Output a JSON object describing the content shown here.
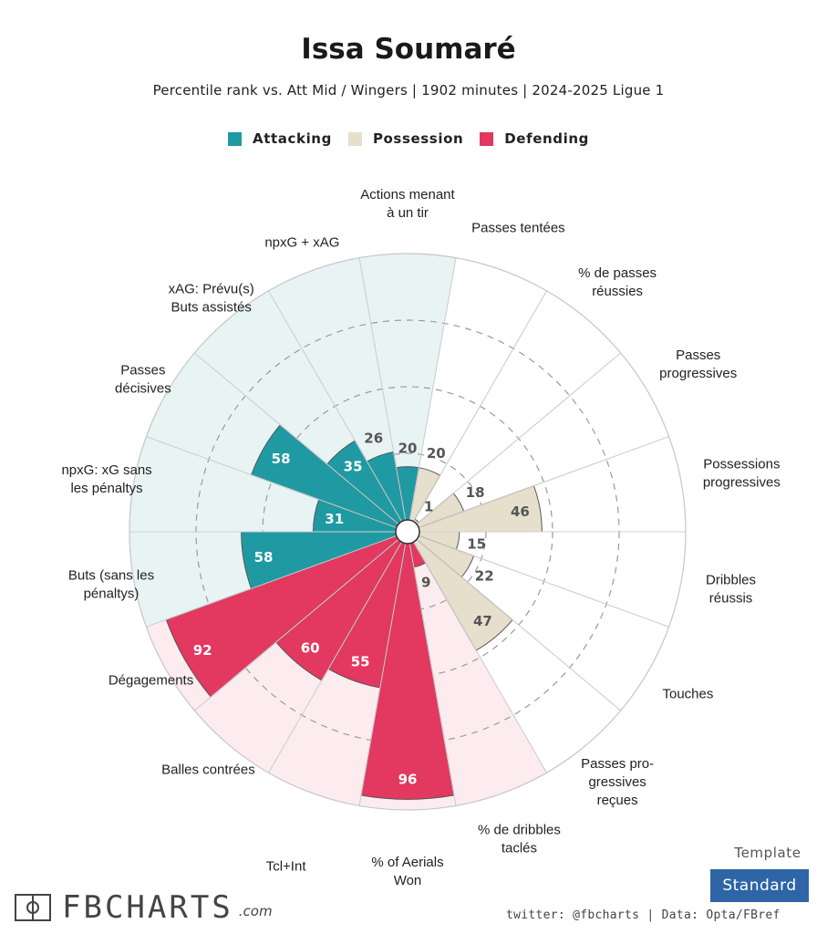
{
  "header": {
    "title": "Issa Soumaré",
    "subtitle": "Percentile rank vs. Att Mid / Wingers | 1902 minutes | 2024-2025 Ligue 1"
  },
  "legend": [
    {
      "label": "Attacking",
      "color": "#1f9aa3"
    },
    {
      "label": "Possession",
      "color": "#e6dfcc"
    },
    {
      "label": "Defending",
      "color": "#e3385f"
    }
  ],
  "chart_data": {
    "type": "polar-bar",
    "rlim": [
      0,
      100
    ],
    "grid": true,
    "categories": [
      {
        "label": "Actions menant\nà un tir",
        "value": 20,
        "group": "Attacking"
      },
      {
        "label": "Passes tentées",
        "value": 20,
        "group": "Possession"
      },
      {
        "label": "% de passes\nréussies",
        "value": 1,
        "group": "Possession"
      },
      {
        "label": "Passes\nprogressives",
        "value": 18,
        "group": "Possession"
      },
      {
        "label": "Possessions\nprogressives",
        "value": 46,
        "group": "Possession"
      },
      {
        "label": "Dribbles\nréussis",
        "value": 15,
        "group": "Possession"
      },
      {
        "label": "Touches",
        "value": 22,
        "group": "Possession"
      },
      {
        "label": "Passes pro-\ngressives\nreçues",
        "value": 47,
        "group": "Possession"
      },
      {
        "label": "% de dribbles\ntaclés",
        "value": 9,
        "group": "Defending"
      },
      {
        "label": "% of Aerials\nWon",
        "value": 96,
        "group": "Defending"
      },
      {
        "label": "Tcl+Int",
        "value": 55,
        "group": "Defending"
      },
      {
        "label": "Balles contrées",
        "value": 60,
        "group": "Defending"
      },
      {
        "label": "Dégagements",
        "value": 92,
        "group": "Defending"
      },
      {
        "label": "Buts (sans les\npénaltys)",
        "value": 58,
        "group": "Attacking"
      },
      {
        "label": "npxG: xG sans\nles pénaltys",
        "value": 31,
        "group": "Attacking"
      },
      {
        "label": "Passes\ndécisives",
        "value": 58,
        "group": "Attacking"
      },
      {
        "label": "xAG: Prévu(s)\nButs assistés",
        "value": 35,
        "group": "Attacking"
      },
      {
        "label": "npxG + xAG",
        "value": 26,
        "group": "Attacking"
      }
    ],
    "group_colors": {
      "Attacking": {
        "bar": "#1f9aa3",
        "bg": "#e8f4f4"
      },
      "Possession": {
        "bar": "#e6dfcc",
        "bg": "#ffffff"
      },
      "Defending": {
        "bar": "#e3385f",
        "bg": "#fcecf0"
      }
    }
  },
  "footer": {
    "template_label": "Template",
    "template_value": "Standard",
    "credit": "twitter: @fbcharts | Data: Opta/FBref",
    "logo_text": "FBCHARTS",
    "logo_suffix": ".com"
  }
}
